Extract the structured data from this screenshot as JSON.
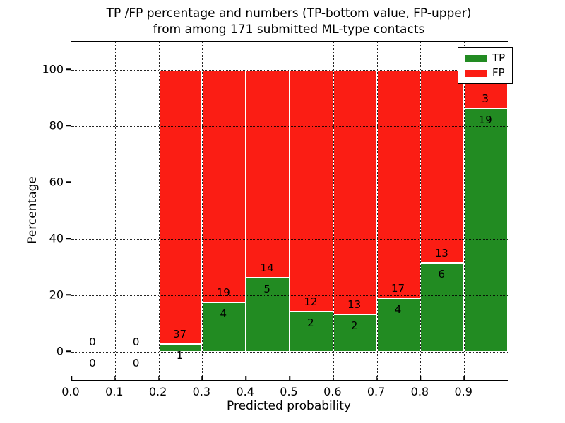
{
  "title": "TP /FP percentage and numbers (TP-bottom value, FP-upper)\nfrom among 171 submitted ML-type contacts",
  "axes": {
    "xlabel": "Predicted probability",
    "ylabel": "Percentage"
  },
  "legend": {
    "position": "upper right",
    "items": [
      {
        "label": "TP",
        "color": "#228b22"
      },
      {
        "label": "FP",
        "color": "#fb1d14"
      }
    ]
  },
  "chart_data": {
    "type": "bar",
    "stacked": true,
    "normalized": "each bin scaled to 100%",
    "title": "TP /FP percentage and numbers (TP-bottom value, FP-upper) from among 171 submitted ML-type contacts",
    "xlabel": "Predicted probability",
    "ylabel": "Percentage",
    "total_contacts": 171,
    "bins": [
      [
        0.0,
        0.1
      ],
      [
        0.1,
        0.2
      ],
      [
        0.2,
        0.3
      ],
      [
        0.3,
        0.4
      ],
      [
        0.4,
        0.5
      ],
      [
        0.5,
        0.6
      ],
      [
        0.6,
        0.7
      ],
      [
        0.7,
        0.8
      ],
      [
        0.8,
        0.9
      ],
      [
        0.9,
        1.0
      ]
    ],
    "series": [
      {
        "name": "TP",
        "color": "#228b22",
        "counts": [
          0,
          0,
          1,
          4,
          5,
          2,
          2,
          4,
          6,
          19
        ]
      },
      {
        "name": "FP",
        "color": "#fb1d14",
        "counts": [
          0,
          0,
          37,
          19,
          14,
          12,
          13,
          17,
          13,
          3
        ]
      }
    ],
    "tp_percent_per_bin": [
      0,
      0,
      2.63,
      17.39,
      26.32,
      14.29,
      13.33,
      19.05,
      31.58,
      86.36
    ],
    "xticks": [
      0.0,
      0.1,
      0.2,
      0.3,
      0.4,
      0.5,
      0.6,
      0.7,
      0.8,
      0.9
    ],
    "yticks": [
      0,
      20,
      40,
      60,
      80,
      100
    ],
    "xlim": [
      0.0,
      1.0
    ],
    "ylim": [
      -10,
      110
    ],
    "grid": true,
    "grid_style": "dotted",
    "legend_position": "upper right"
  }
}
